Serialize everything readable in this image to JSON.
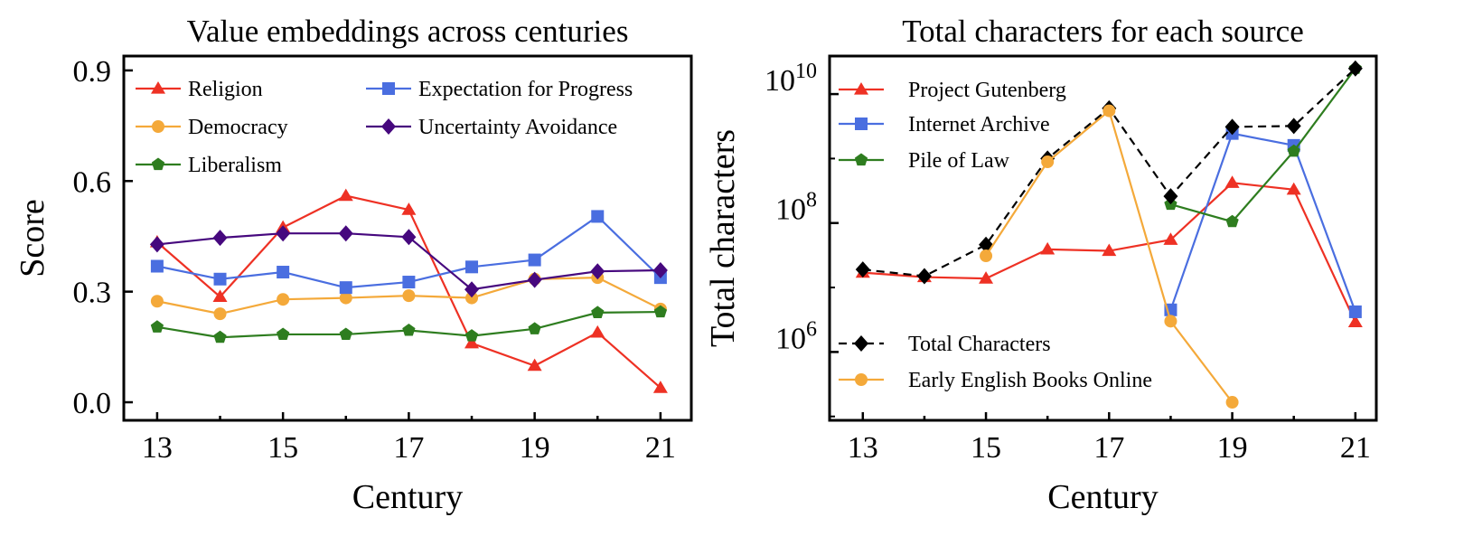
{
  "chart_data": [
    {
      "type": "line",
      "title": "Value embeddings across centuries",
      "xlabel": "Century",
      "ylabel": "Score",
      "x": [
        13,
        14,
        15,
        16,
        17,
        18,
        19,
        20,
        21
      ],
      "xticks": [
        13,
        15,
        17,
        19,
        21
      ],
      "yticks": [
        0.0,
        0.3,
        0.6,
        0.9
      ],
      "ytick_labels": [
        "0.0",
        "0.3",
        "0.6",
        "0.9"
      ],
      "xlim": [
        12.47,
        21.49
      ],
      "ylim": [
        -0.049,
        0.939
      ],
      "yscale": "linear",
      "legend": "top",
      "series": [
        {
          "name": "Religion",
          "color": "#ee3124",
          "marker": "triangle",
          "values": [
            0.434,
            0.286,
            0.474,
            0.56,
            0.522,
            0.16,
            0.099,
            0.189,
            0.039
          ]
        },
        {
          "name": "Democracy",
          "color": "#f4a93a",
          "marker": "circle",
          "values": [
            0.274,
            0.24,
            0.279,
            0.283,
            0.289,
            0.283,
            0.334,
            0.338,
            0.253
          ]
        },
        {
          "name": "Liberalism",
          "color": "#2e7d1f",
          "marker": "pentagon",
          "values": [
            0.204,
            0.176,
            0.184,
            0.184,
            0.195,
            0.18,
            0.199,
            0.243,
            0.245
          ]
        },
        {
          "name": "Expectation for Progress",
          "color": "#4a6ee0",
          "marker": "square",
          "values": [
            0.369,
            0.334,
            0.353,
            0.311,
            0.326,
            0.367,
            0.386,
            0.504,
            0.338
          ]
        },
        {
          "name": "Uncertainty Avoidance",
          "color": "#46087e",
          "marker": "diamond",
          "values": [
            0.428,
            0.446,
            0.458,
            0.458,
            0.448,
            0.306,
            0.332,
            0.355,
            0.358
          ]
        }
      ]
    },
    {
      "type": "line",
      "title": "Total characters for each source",
      "xlabel": "Century",
      "ylabel": "Total characters",
      "x": [
        13,
        14,
        15,
        16,
        17,
        18,
        19,
        20,
        21
      ],
      "xticks": [
        13,
        15,
        17,
        19,
        21
      ],
      "yticks": [
        6,
        8,
        10
      ],
      "ytick_labels": [
        "10^6",
        "10^8",
        "10^10"
      ],
      "xlim": [
        12.46,
        21.34
      ],
      "ylim_log10": [
        4.94,
        10.59
      ],
      "yscale": "log",
      "legend": "top-left",
      "series": [
        {
          "name": "Project Gutenberg",
          "color": "#ee3124",
          "marker": "triangle",
          "dash": false,
          "values": [
            17000000.0,
            14500000.0,
            13800000.0,
            39000000.0,
            37000000.0,
            55000000.0,
            420000000.0,
            330000000.0,
            2900000.0
          ]
        },
        {
          "name": "Internet Archive",
          "color": "#4a6ee0",
          "marker": "square",
          "dash": false,
          "values": [
            null,
            null,
            null,
            null,
            null,
            4500000.0,
            2450000000.0,
            1600000000.0,
            4200000.0
          ]
        },
        {
          "name": "Pile of Law",
          "color": "#2e7d1f",
          "marker": "pentagon",
          "dash": false,
          "values": [
            null,
            null,
            null,
            null,
            null,
            195000000.0,
            105000000.0,
            1300000000.0,
            25000000000.0
          ]
        },
        {
          "name": "Total Characters",
          "color": "#000000",
          "marker": "diamond",
          "dash": true,
          "values": [
            19000000.0,
            15000000.0,
            46000000.0,
            1000000000.0,
            6000000000.0,
            260000000.0,
            3100000000.0,
            3200000000.0,
            25000000000.0
          ]
        },
        {
          "name": "Early English Books Online",
          "color": "#f4a93a",
          "marker": "circle",
          "dash": false,
          "values": [
            null,
            null,
            31000000.0,
            890000000.0,
            5500000000.0,
            3000000.0,
            166000.0,
            null,
            null
          ]
        }
      ]
    }
  ]
}
